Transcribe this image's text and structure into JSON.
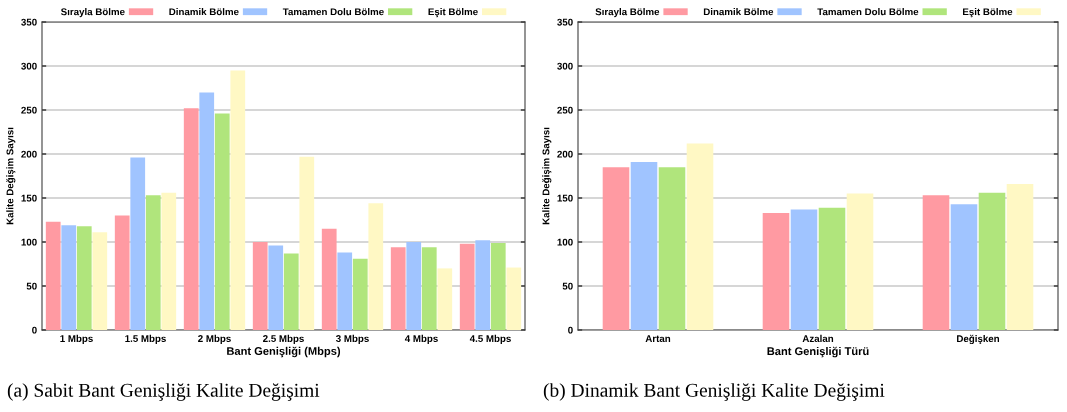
{
  "chart_data": [
    {
      "type": "bar",
      "xlabel": "Bant Genişliği (Mbps)",
      "ylabel": "Kalite Değişim Sayısı",
      "categories": [
        "1 Mbps",
        "1.5 Mbps",
        "2 Mbps",
        "2.5 Mbps",
        "3 Mbps",
        "4 Mbps",
        "4.5 Mbps"
      ],
      "series": [
        {
          "name": "Sırayla Bölme",
          "color": "#ff9aa2",
          "values": [
            123,
            130,
            252,
            100,
            115,
            94,
            98
          ]
        },
        {
          "name": "Dinamik Bölme",
          "color": "#a0c4ff",
          "values": [
            119,
            196,
            270,
            96,
            88,
            100,
            102
          ]
        },
        {
          "name": "Tamamen Dolu Bölme",
          "color": "#b0e57c",
          "values": [
            118,
            153,
            246,
            87,
            81,
            94,
            99
          ]
        },
        {
          "name": "Eşit Bölme",
          "color": "#fff8c4",
          "values": [
            111,
            156,
            295,
            197,
            144,
            70,
            71
          ]
        }
      ],
      "ylim": [
        0,
        350
      ],
      "yticks": [
        0,
        50,
        100,
        150,
        200,
        250,
        300,
        350
      ],
      "grid": "y",
      "legend": "top",
      "annotations": [
        "(a) Sabit Bant Genişliği Kalite Değişimi"
      ]
    },
    {
      "type": "bar",
      "xlabel": "Bant Genişliği Türü",
      "ylabel": "Kalite Değişim Sayısı",
      "categories": [
        "Artan",
        "Azalan",
        "Değişken"
      ],
      "series": [
        {
          "name": "Sırayla Bölme",
          "color": "#ff9aa2",
          "values": [
            185,
            133,
            153
          ]
        },
        {
          "name": "Dinamik Bölme",
          "color": "#a0c4ff",
          "values": [
            191,
            137,
            143
          ]
        },
        {
          "name": "Tamamen Dolu Bölme",
          "color": "#b0e57c",
          "values": [
            185,
            139,
            156
          ]
        },
        {
          "name": "Eşit Bölme",
          "color": "#fff8c4",
          "values": [
            212,
            155,
            166
          ]
        }
      ],
      "ylim": [
        0,
        350
      ],
      "yticks": [
        0,
        50,
        100,
        150,
        200,
        250,
        300,
        350
      ],
      "grid": "y",
      "legend": "top",
      "annotations": [
        "(b) Dinamik Bant Genişliği Kalite Değişimi"
      ]
    }
  ]
}
